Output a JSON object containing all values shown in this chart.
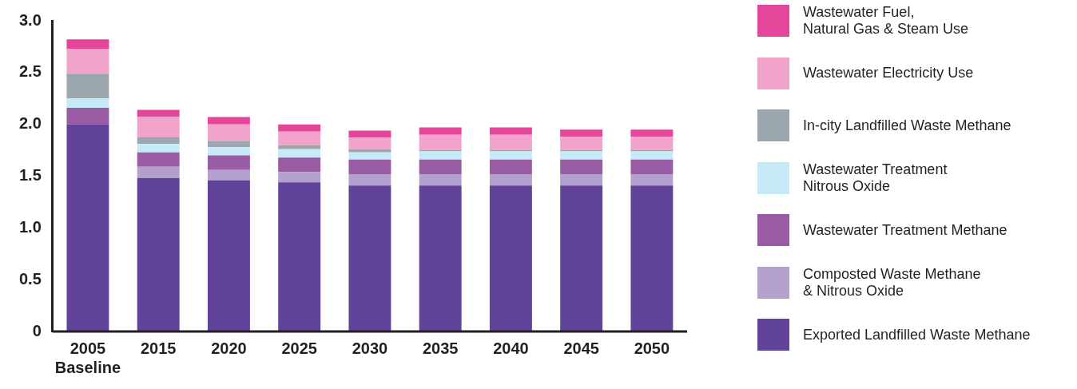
{
  "chart_data": {
    "type": "bar",
    "stacked": true,
    "legend": "right",
    "grid": false,
    "categories": [
      "2005\nBaseline",
      "2015",
      "2020",
      "2025",
      "2030",
      "2035",
      "2040",
      "2045",
      "2050"
    ],
    "ylim": [
      0,
      3
    ],
    "yticks": [
      0,
      {
        "value": 0.5,
        "label": "0.5"
      },
      {
        "value": 1,
        "label": "1.0"
      },
      {
        "value": 1.5,
        "label": "1.5"
      },
      {
        "value": 2,
        "label": "2.0"
      },
      {
        "value": 2.5,
        "label": "2.5"
      },
      {
        "value": 3,
        "label": "3.0"
      }
    ],
    "series": [
      {
        "name": "Exported Landfilled Waste Methane",
        "color": "#62439a",
        "values": [
          2.0,
          1.48,
          1.46,
          1.44,
          1.41,
          1.41,
          1.41,
          1.41,
          1.41
        ]
      },
      {
        "name": "Composted Waste Methane\n& Nitrous Oxide",
        "color": "#b2a1cc",
        "values": [
          0,
          0.11,
          0.1,
          0.1,
          0.11,
          0.11,
          0.11,
          0.11,
          0.11
        ]
      },
      {
        "name": "Wastewater Treatment Methane",
        "color": "#995ba3",
        "values": [
          0.16,
          0.14,
          0.14,
          0.14,
          0.14,
          0.14,
          0.14,
          0.14,
          0.14
        ]
      },
      {
        "name": "Wastewater Treatment\nNitrous Oxide",
        "color": "#c6e9f8",
        "values": [
          0.09,
          0.08,
          0.08,
          0.08,
          0.07,
          0.08,
          0.08,
          0.08,
          0.08
        ]
      },
      {
        "name": "In-city Landfilled Waste Methane",
        "color": "#9ba7ad",
        "values": [
          0.24,
          0.07,
          0.06,
          0.04,
          0.03,
          0.01,
          0.01,
          0.01,
          0.01
        ]
      },
      {
        "name": "Wastewater Electricity Use",
        "color": "#f1a3cb",
        "values": [
          0.24,
          0.19,
          0.16,
          0.13,
          0.11,
          0.15,
          0.15,
          0.13,
          0.13
        ]
      },
      {
        "name": "Wastewater Fuel,\nNatural Gas & Steam Use",
        "color": "#e4479a",
        "values": [
          0.09,
          0.07,
          0.07,
          0.07,
          0.07,
          0.07,
          0.07,
          0.07,
          0.07
        ]
      }
    ]
  }
}
